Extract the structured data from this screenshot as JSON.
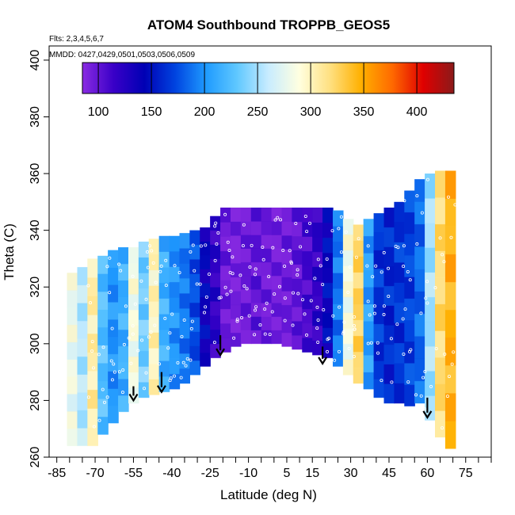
{
  "chart_data": {
    "type": "heatmap",
    "title": "ATOM4 Southbound TROPPB_GEOS5",
    "subtitle_flights": "Flts: 2,3,4,5,6,7",
    "subtitle_dates": "MMDD: 0427,0429,0501,0503,0506,0509",
    "xlabel": "Latitude (deg N)",
    "ylabel": "Theta (C)",
    "xlim": [
      -88,
      85
    ],
    "ylim": [
      260,
      405
    ],
    "x_tick_labels": [
      "-85",
      "-70",
      "-55",
      "-40",
      "-25",
      "-10",
      "5",
      "15",
      "30",
      "45",
      "60",
      "75"
    ],
    "x_tick_values": [
      -85,
      -70,
      -55,
      -40,
      -25,
      -10,
      5,
      15,
      30,
      45,
      60,
      75
    ],
    "y_tick_values": [
      260,
      280,
      300,
      320,
      340,
      360,
      380,
      400
    ],
    "y_tick_labels": [
      "260",
      "280",
      "300",
      "320",
      "340",
      "360",
      "380",
      "400"
    ],
    "colorbar": {
      "min": 85,
      "max": 435,
      "tick_values": [
        100,
        150,
        200,
        250,
        300,
        350,
        400
      ],
      "tick_labels": [
        "100",
        "150",
        "200",
        "250",
        "300",
        "350",
        "400"
      ],
      "colors": [
        "#8a2be2",
        "#3a00c8",
        "#0000b4",
        "#0044e0",
        "#1f9bff",
        "#60c8ff",
        "#c8ecff",
        "#ffffe0",
        "#ffe080",
        "#ffb000",
        "#ff6a00",
        "#e00000",
        "#8b1a1a"
      ]
    },
    "columns": [
      {
        "lat": -79,
        "bottom": 264,
        "top": 325,
        "value": 280
      },
      {
        "lat": -75,
        "bottom": 264,
        "top": 327,
        "value": 255
      },
      {
        "lat": -71,
        "bottom": 264,
        "top": 330,
        "value": 305
      },
      {
        "lat": -67,
        "bottom": 268,
        "top": 331,
        "value": 225
      },
      {
        "lat": -63,
        "bottom": 272,
        "top": 333,
        "value": 200
      },
      {
        "lat": -59,
        "bottom": 276,
        "top": 334,
        "value": 215
      },
      {
        "lat": -55,
        "bottom": 279,
        "top": 334,
        "value": 285
      },
      {
        "lat": -51,
        "bottom": 281,
        "top": 336,
        "value": 235
      },
      {
        "lat": -47,
        "bottom": 282,
        "top": 337,
        "value": 300
      },
      {
        "lat": -43,
        "bottom": 283,
        "top": 338,
        "value": 215
      },
      {
        "lat": -39,
        "bottom": 284,
        "top": 338,
        "value": 200
      },
      {
        "lat": -35,
        "bottom": 286,
        "top": 339,
        "value": 190
      },
      {
        "lat": -31,
        "bottom": 289,
        "top": 340,
        "value": 175
      },
      {
        "lat": -27,
        "bottom": 292,
        "top": 341,
        "value": 140
      },
      {
        "lat": -23,
        "bottom": 295,
        "top": 345,
        "value": 120
      },
      {
        "lat": -19,
        "bottom": 297,
        "top": 348,
        "value": 95
      },
      {
        "lat": -15,
        "bottom": 299,
        "top": 348,
        "value": 90
      },
      {
        "lat": -11,
        "bottom": 300,
        "top": 348,
        "value": 95
      },
      {
        "lat": -7,
        "bottom": 300,
        "top": 348,
        "value": 100
      },
      {
        "lat": -3,
        "bottom": 300,
        "top": 348,
        "value": 95
      },
      {
        "lat": 1,
        "bottom": 300,
        "top": 348,
        "value": 92
      },
      {
        "lat": 5,
        "bottom": 299,
        "top": 348,
        "value": 95
      },
      {
        "lat": 9,
        "bottom": 298,
        "top": 348,
        "value": 100
      },
      {
        "lat": 13,
        "bottom": 297,
        "top": 348,
        "value": 110
      },
      {
        "lat": 17,
        "bottom": 296,
        "top": 348,
        "value": 120
      },
      {
        "lat": 21,
        "bottom": 295,
        "top": 348,
        "value": 145
      },
      {
        "lat": 25,
        "bottom": 292,
        "top": 347,
        "value": 190
      },
      {
        "lat": 29,
        "bottom": 289,
        "top": 344,
        "value": 285
      },
      {
        "lat": 33,
        "bottom": 286,
        "top": 342,
        "value": 325
      },
      {
        "lat": 37,
        "bottom": 284,
        "top": 344,
        "value": 205
      },
      {
        "lat": 41,
        "bottom": 281,
        "top": 346,
        "value": 165
      },
      {
        "lat": 45,
        "bottom": 279,
        "top": 348,
        "value": 160
      },
      {
        "lat": 49,
        "bottom": 279,
        "top": 350,
        "value": 165
      },
      {
        "lat": 53,
        "bottom": 278,
        "top": 354,
        "value": 170
      },
      {
        "lat": 57,
        "bottom": 279,
        "top": 358,
        "value": 185
      },
      {
        "lat": 61,
        "bottom": 273,
        "top": 360,
        "value": 250
      },
      {
        "lat": 65,
        "bottom": 267,
        "top": 361,
        "value": 320
      },
      {
        "lat": 69,
        "bottom": 263,
        "top": 361,
        "value": 345
      }
    ],
    "arrows": [
      {
        "lat": -55,
        "theta_top": 285,
        "theta_bottom": 280
      },
      {
        "lat": -44,
        "theta_top": 290,
        "theta_bottom": 283
      },
      {
        "lat": -21,
        "theta_top": 303,
        "theta_bottom": 296
      },
      {
        "lat": 19,
        "theta_top": 299,
        "theta_bottom": 293
      },
      {
        "lat": 60,
        "theta_top": 281,
        "theta_bottom": 274
      }
    ]
  }
}
